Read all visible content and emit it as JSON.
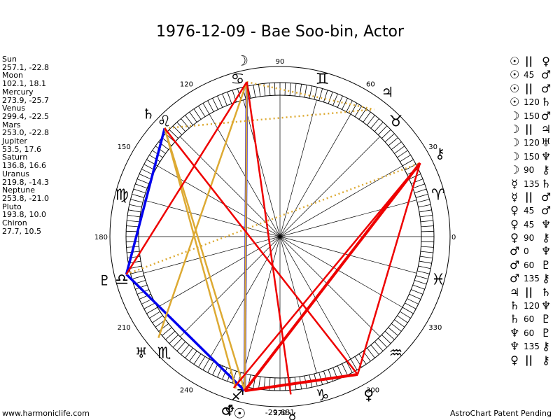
{
  "title": "1976-12-09 - Bae Soo-bin, Actor",
  "positions": [
    {
      "name": "Sun",
      "value": "257.1, -22.8"
    },
    {
      "name": "Moon",
      "value": "102.1, 18.1"
    },
    {
      "name": "Mercury",
      "value": "273.9, -25.7"
    },
    {
      "name": "Venus",
      "value": "299.4, -22.5"
    },
    {
      "name": "Mars",
      "value": "253.0, -22.8"
    },
    {
      "name": "Jupiter",
      "value": "53.5, 17.6"
    },
    {
      "name": "Saturn",
      "value": "136.8, 16.6"
    },
    {
      "name": "Uranus",
      "value": "219.8, -14.3"
    },
    {
      "name": "Neptune",
      "value": "253.8, -21.0"
    },
    {
      "name": "Pluto",
      "value": "193.8, 10.0"
    },
    {
      "name": "Chiron",
      "value": "27.7, 10.5"
    }
  ],
  "aspects": [
    {
      "a": "☉",
      "s": "||",
      "b": "♀"
    },
    {
      "a": "☉",
      "s": "45",
      "b": "♂"
    },
    {
      "a": "☉",
      "s": "||",
      "b": "♂"
    },
    {
      "a": "☉",
      "s": "120",
      "b": "♄"
    },
    {
      "a": "☽",
      "s": "150",
      "b": "♂"
    },
    {
      "a": "☽",
      "s": "||",
      "b": "♃"
    },
    {
      "a": "☽",
      "s": "120",
      "b": "♅"
    },
    {
      "a": "☽",
      "s": "150",
      "b": "♆"
    },
    {
      "a": "☽",
      "s": "90",
      "b": "⚷"
    },
    {
      "a": "☿",
      "s": "135",
      "b": "♄"
    },
    {
      "a": "☿",
      "s": "||",
      "b": "♂"
    },
    {
      "a": "♀",
      "s": "45",
      "b": "♂"
    },
    {
      "a": "♀",
      "s": "45",
      "b": "♆"
    },
    {
      "a": "♀",
      "s": "90",
      "b": "⚷"
    },
    {
      "a": "♂",
      "s": "0",
      "b": "♆"
    },
    {
      "a": "♂",
      "s": "60",
      "b": "♇"
    },
    {
      "a": "♂",
      "s": "135",
      "b": "⚷"
    },
    {
      "a": "♃",
      "s": "||",
      "b": "♄"
    },
    {
      "a": "♄",
      "s": "120",
      "b": "♆"
    },
    {
      "a": "♄",
      "s": "60",
      "b": "♇"
    },
    {
      "a": "♆",
      "s": "60",
      "b": "♇"
    },
    {
      "a": "♆",
      "s": "135",
      "b": "⚷"
    },
    {
      "a": "♀",
      "s": "||",
      "b": "⚷"
    }
  ],
  "degree_labels": [
    "0",
    "30",
    "60",
    "90",
    "120",
    "150",
    "180",
    "210",
    "240",
    "270",
    "300",
    "330"
  ],
  "zodiac_signs": [
    {
      "glyph": "♈",
      "lon": 15
    },
    {
      "glyph": "♉",
      "lon": 45
    },
    {
      "glyph": "♊",
      "lon": 75
    },
    {
      "glyph": "♋",
      "lon": 105
    },
    {
      "glyph": "♌",
      "lon": 135
    },
    {
      "glyph": "♍",
      "lon": 165
    },
    {
      "glyph": "♎",
      "lon": 195
    },
    {
      "glyph": "♏",
      "lon": 225
    },
    {
      "glyph": "♐",
      "lon": 255
    },
    {
      "glyph": "♑",
      "lon": 285
    },
    {
      "glyph": "♒",
      "lon": 315
    },
    {
      "glyph": "♓",
      "lon": 345
    }
  ],
  "planets": [
    {
      "id": "sun",
      "glyph": "☉",
      "lon": 257.1
    },
    {
      "id": "moon",
      "glyph": "☽",
      "lon": 102.1
    },
    {
      "id": "mercury",
      "glyph": "☿",
      "lon": 273.9
    },
    {
      "id": "venus",
      "glyph": "♀",
      "lon": 299.4
    },
    {
      "id": "mars",
      "glyph": "♂",
      "lon": 253.0
    },
    {
      "id": "jupiter",
      "glyph": "♃",
      "lon": 53.5
    },
    {
      "id": "saturn",
      "glyph": "♄",
      "lon": 136.8
    },
    {
      "id": "uranus",
      "glyph": "♅",
      "lon": 219.8
    },
    {
      "id": "neptune",
      "glyph": "♆",
      "lon": 253.8
    },
    {
      "id": "pluto",
      "glyph": "♇",
      "lon": 193.8
    },
    {
      "id": "chiron",
      "glyph": "⚷",
      "lon": 27.7
    }
  ],
  "aspect_lines": [
    {
      "from": "sun",
      "to": "moon",
      "color": "#0000ee"
    },
    {
      "from": "sun",
      "to": "pluto",
      "color": "#0000ee"
    },
    {
      "from": "pluto",
      "to": "saturn",
      "color": "#0000ee"
    },
    {
      "from": "sun",
      "to": "saturn",
      "color": "#ddaa33"
    },
    {
      "from": "neptune",
      "to": "saturn",
      "color": "#ddaa33"
    },
    {
      "from": "sun",
      "to": "moon",
      "color": "#ddaa33"
    },
    {
      "from": "uranus",
      "to": "moon",
      "color": "#ddaa33"
    },
    {
      "from": "moon",
      "to": "jupiter",
      "color": "#ddaa33",
      "dotted": true
    },
    {
      "from": "saturn",
      "to": "jupiter",
      "color": "#ddaa33",
      "dotted": true
    },
    {
      "from": "pluto",
      "to": "chiron",
      "color": "#ddaa33",
      "dotted": true
    },
    {
      "from": "moon",
      "to": "mercury",
      "color": "#ee0000"
    },
    {
      "from": "saturn",
      "to": "venus",
      "color": "#ee0000"
    },
    {
      "from": "pluto",
      "to": "moon",
      "color": "#ee0000"
    },
    {
      "from": "venus",
      "to": "chiron",
      "color": "#ee0000"
    },
    {
      "from": "sun",
      "to": "chiron",
      "color": "#ee0000",
      "bold": true
    },
    {
      "from": "sun",
      "to": "venus",
      "color": "#ee0000",
      "bold": true
    },
    {
      "from": "mars",
      "to": "chiron",
      "color": "#ee0000"
    }
  ],
  "footer_left": "www.harmoniclife.com",
  "footer_right": "AstroChart Patent Pending",
  "bottom_value": "-29,681",
  "colors": {
    "trine": "#0000ee",
    "sextile": "#ddaa33",
    "square": "#ee0000"
  }
}
